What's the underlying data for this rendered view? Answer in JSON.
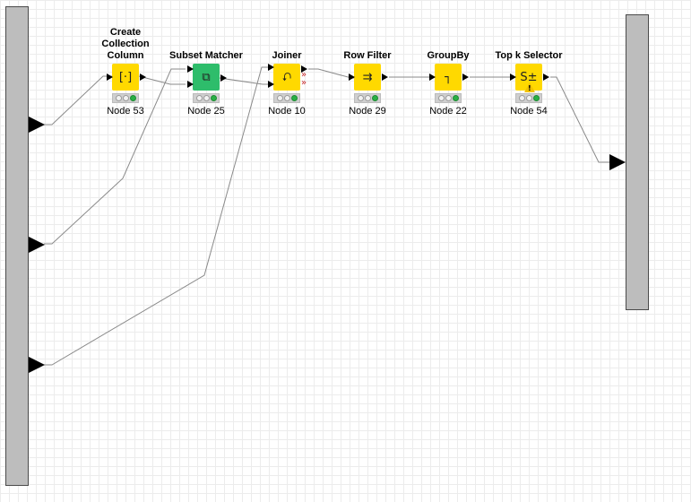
{
  "workflow": {
    "nodes": [
      {
        "id": "node-53",
        "title": "Create Collection\nColumn",
        "label": "Node 53",
        "color": "#ffd900",
        "glyph": "[·]"
      },
      {
        "id": "node-25",
        "title": "Subset Matcher",
        "label": "Node 25",
        "color": "#2ebd6b",
        "glyph": "⧉"
      },
      {
        "id": "node-10",
        "title": "Joiner",
        "label": "Node 10",
        "color": "#ffd900",
        "glyph": "⮏"
      },
      {
        "id": "node-29",
        "title": "Row Filter",
        "label": "Node 29",
        "color": "#ffd900",
        "glyph": "⇉"
      },
      {
        "id": "node-22",
        "title": "GroupBy",
        "label": "Node 22",
        "color": "#ffd900",
        "glyph": "┐"
      },
      {
        "id": "node-54",
        "title": "Top k Selector",
        "label": "Node 54",
        "color": "#ffd900",
        "glyph": "S±"
      }
    ],
    "warning_glyph": "!",
    "error_port_glyph": "»",
    "colors": {
      "edge": "#8a8a8a",
      "bar": "#bdbdbd",
      "yellow_node": "#ffd900",
      "green_node": "#2ebd6b",
      "status_green": "#29b045"
    }
  }
}
